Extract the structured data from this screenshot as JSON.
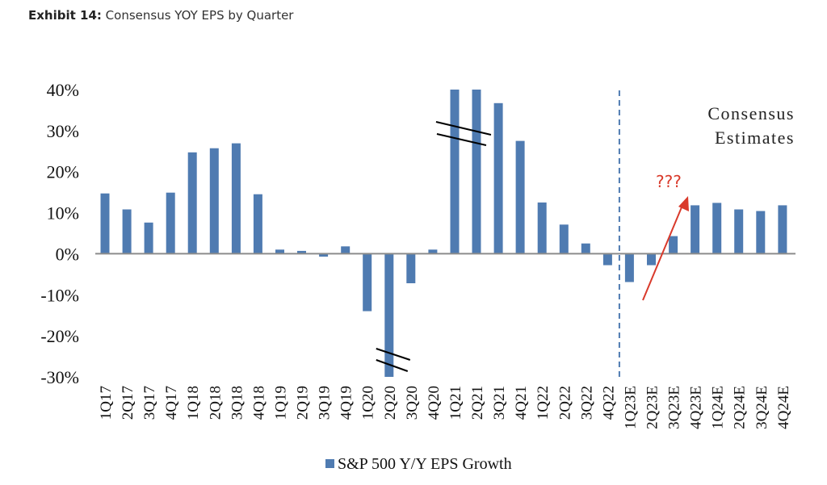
{
  "header": {
    "exhibit_label": "Exhibit 14:",
    "exhibit_title": "Consensus YOY EPS by Quarter"
  },
  "chart_data": {
    "type": "bar",
    "title": "Consensus YOY EPS by Quarter",
    "xlabel": "",
    "ylabel": "",
    "ylim": [
      -30,
      40
    ],
    "yticks": [
      40,
      30,
      20,
      10,
      0,
      -10,
      -20,
      -30
    ],
    "ytick_labels": [
      "40%",
      "30%",
      "20%",
      "10%",
      "0%",
      "-10%",
      "-20%",
      "-30%"
    ],
    "grid": false,
    "legend_position": "bottom-center",
    "categories": [
      "1Q17",
      "2Q17",
      "3Q17",
      "4Q17",
      "1Q18",
      "2Q18",
      "3Q18",
      "4Q18",
      "1Q19",
      "2Q19",
      "3Q19",
      "4Q19",
      "1Q20",
      "2Q20",
      "3Q20",
      "4Q20",
      "1Q21",
      "2Q21",
      "3Q21",
      "4Q21",
      "1Q22",
      "2Q22",
      "3Q22",
      "4Q22",
      "1Q23E",
      "2Q23E",
      "3Q23E",
      "4Q23E",
      "1Q24E",
      "2Q24E",
      "3Q24E",
      "4Q24E"
    ],
    "series": [
      {
        "name": "S&P 500 Y/Y EPS Growth",
        "color": "#4f7bb1",
        "values": [
          14.7,
          10.8,
          7.6,
          14.9,
          24.7,
          25.7,
          26.9,
          14.5,
          1.0,
          0.7,
          -0.7,
          1.8,
          -14.0,
          -30.0,
          -7.2,
          1.0,
          40.0,
          40.0,
          36.7,
          27.5,
          12.5,
          7.1,
          2.5,
          -2.8,
          -6.9,
          -2.8,
          4.3,
          11.8,
          12.4,
          10.8,
          10.4,
          11.8
        ]
      }
    ],
    "axis_breaks": [
      "2Q20",
      "1Q21",
      "2Q21"
    ],
    "annotations": {
      "estimates_divider_between": [
        "4Q22",
        "1Q23E"
      ],
      "estimates_label_line1": "Consensus",
      "estimates_label_line2": "Estimates",
      "question_marks": "???",
      "arrow_color": "#d93a2b",
      "divider_color": "#4f7bb1"
    },
    "legend": [
      "S&P 500 Y/Y EPS Growth"
    ]
  }
}
